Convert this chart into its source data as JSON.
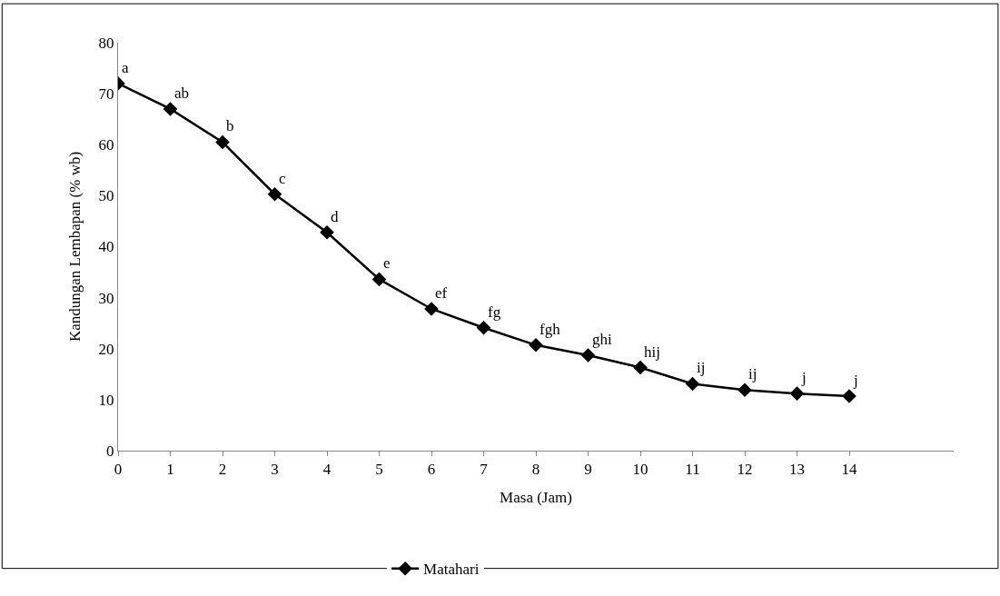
{
  "chart_data": {
    "type": "line",
    "xlabel": "Masa (Jam)",
    "ylabel": "Kandungan Lembapan (% wb)",
    "x": [
      0,
      1,
      2,
      3,
      4,
      5,
      6,
      7,
      8,
      9,
      10,
      11,
      12,
      13,
      14
    ],
    "series": [
      {
        "name": "Matahari",
        "color": "#000000",
        "values": [
          72,
          67,
          60.5,
          50.3,
          42.8,
          33.6,
          27.8,
          24.1,
          20.7,
          18.7,
          16.3,
          13.1,
          11.9,
          11.2,
          10.7
        ]
      }
    ],
    "xlim": [
      0,
      16
    ],
    "xticks": [
      0,
      1,
      2,
      3,
      4,
      5,
      6,
      7,
      8,
      9,
      10,
      11,
      12,
      13,
      14
    ],
    "ylim": [
      0,
      80
    ],
    "yticks": [
      0,
      10,
      20,
      30,
      40,
      50,
      60,
      70,
      80
    ],
    "annotations": [
      {
        "text": "a",
        "x": 0,
        "y": 72
      },
      {
        "text": "ab",
        "x": 1,
        "y": 67
      },
      {
        "text": "b",
        "x": 2,
        "y": 60.5
      },
      {
        "text": "c",
        "x": 3,
        "y": 50.3
      },
      {
        "text": "d",
        "x": 4,
        "y": 42.8
      },
      {
        "text": "e",
        "x": 5,
        "y": 33.6
      },
      {
        "text": "ef",
        "x": 6,
        "y": 27.8
      },
      {
        "text": "fg",
        "x": 7,
        "y": 24.1
      },
      {
        "text": "fgh",
        "x": 8,
        "y": 20.7
      },
      {
        "text": "ghi",
        "x": 9,
        "y": 18.7
      },
      {
        "text": "hij",
        "x": 10,
        "y": 16.3
      },
      {
        "text": "ij",
        "x": 11,
        "y": 13.1
      },
      {
        "text": "ij",
        "x": 12,
        "y": 11.9
      },
      {
        "text": "j",
        "x": 13,
        "y": 11.2
      },
      {
        "text": "j",
        "x": 14,
        "y": 10.7
      }
    ],
    "legend": "bottom",
    "marker": "diamond",
    "line_style": "solid"
  }
}
